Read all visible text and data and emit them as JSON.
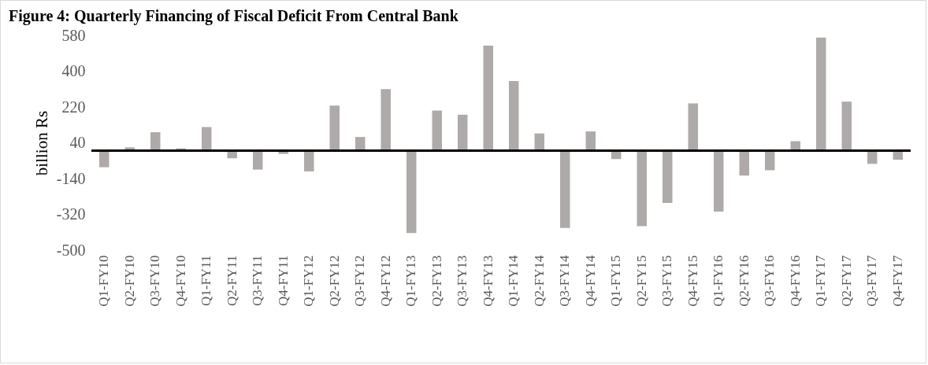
{
  "chart_data": {
    "type": "bar",
    "title": "Figure 4: Quarterly Financing of Fiscal Deficit From Central Bank",
    "ylabel": "billion Rs",
    "categories": [
      "Q1-FY10",
      "Q2-FY10",
      "Q3-FY10",
      "Q4-FY10",
      "Q1-FY11",
      "Q2-FY11",
      "Q3-FY11",
      "Q4-FY11",
      "Q1-FY12",
      "Q2-FY12",
      "Q3-FY12",
      "Q4-FY12",
      "Q1-FY13",
      "Q2-FY13",
      "Q3-FY13",
      "Q4-FY13",
      "Q1-FY14",
      "Q2-FY14",
      "Q3-FY14",
      "Q4-FY14",
      "Q1-FY15",
      "Q2-FY15",
      "Q3-FY15",
      "Q4-FY15",
      "Q1-FY16",
      "Q2-FY16",
      "Q3-FY16",
      "Q4-FY16",
      "Q1-FY17",
      "Q2-FY17",
      "Q3-FY17",
      "Q4-FY17"
    ],
    "values": [
      -83,
      17,
      93,
      12,
      119,
      -38,
      -95,
      -16,
      -104,
      227,
      69,
      310,
      -414,
      202,
      181,
      529,
      351,
      87,
      -388,
      97,
      -42,
      -379,
      -263,
      238,
      -306,
      -125,
      -98,
      48,
      569,
      247,
      -66,
      -45
    ],
    "color": "#aeaaaa",
    "ylim": [
      -500,
      580
    ],
    "yticks": [
      -500,
      -320,
      -140,
      40,
      220,
      400,
      580
    ],
    "grid": false
  }
}
